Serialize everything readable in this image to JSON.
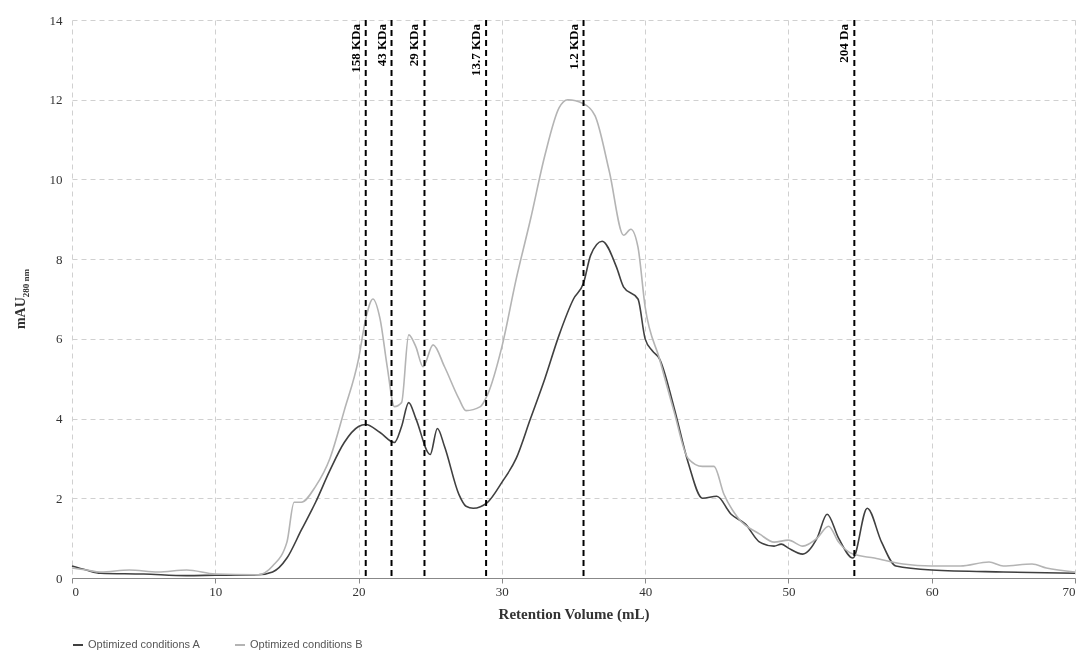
{
  "chart_data": {
    "type": "line",
    "xlabel": "Retention Volume (mL)",
    "ylabel": "mAU$_{280 nm}$",
    "xlim": [
      0,
      70
    ],
    "xticks": [
      0,
      10,
      20,
      30,
      40,
      50,
      60,
      70
    ],
    "ylim": [
      0,
      14
    ],
    "yticks": [
      0,
      2,
      4,
      6,
      8,
      10,
      12,
      14
    ],
    "grid": true,
    "legend": "bottom",
    "line_style": "solid",
    "marker": "none",
    "series": [
      {
        "name": "Optimized conditions A",
        "color": "#404040",
        "x": [
          0,
          1,
          2,
          5,
          8,
          10,
          13,
          14,
          15,
          16,
          17,
          18,
          19,
          20,
          20.5,
          21.5,
          22.5,
          23,
          23.5,
          24,
          25,
          25.5,
          26,
          27,
          27.5,
          28,
          29,
          30,
          31,
          32,
          33,
          34,
          35,
          35.7,
          36.2,
          37,
          38,
          38.5,
          39.5,
          40,
          40.5,
          41,
          42,
          43,
          44,
          45,
          46,
          47,
          48,
          49,
          49.5,
          50,
          51,
          52,
          52.7,
          53.5,
          54.5,
          55.5,
          56.5,
          57.5,
          60,
          65,
          70
        ],
        "values": [
          0.3,
          0.2,
          0.12,
          0.1,
          0.06,
          0.07,
          0.08,
          0.15,
          0.5,
          1.2,
          1.9,
          2.7,
          3.4,
          3.8,
          3.85,
          3.65,
          3.4,
          3.8,
          4.4,
          4.0,
          3.1,
          3.75,
          3.3,
          2.1,
          1.8,
          1.75,
          1.9,
          2.4,
          3.0,
          4.0,
          5.0,
          6.1,
          7.0,
          7.4,
          8.1,
          8.45,
          7.8,
          7.3,
          7.0,
          6.0,
          5.7,
          5.5,
          4.3,
          2.9,
          2.0,
          2.05,
          1.6,
          1.35,
          0.9,
          0.8,
          0.85,
          0.75,
          0.6,
          1.0,
          1.6,
          1.0,
          0.5,
          1.75,
          0.9,
          0.3,
          0.2,
          0.15,
          0.12
        ]
      },
      {
        "name": "Optimized conditions B",
        "color": "#b4b4b4",
        "x": [
          0,
          1,
          2,
          4,
          6,
          8,
          10,
          13,
          14,
          15,
          15.5,
          16,
          17,
          18,
          19,
          20,
          20.5,
          21,
          21.5,
          22,
          22.5,
          23,
          23.5,
          24,
          24.5,
          25.2,
          26,
          27,
          27.5,
          28.5,
          29,
          30,
          31,
          32,
          33,
          34,
          34.6,
          35.7,
          36.5,
          37.5,
          38.5,
          39,
          39.5,
          40,
          41,
          42,
          43,
          44,
          44.8,
          45.5,
          46.5,
          48,
          49,
          50,
          51,
          52,
          52.8,
          53.5,
          54.5,
          56,
          58,
          60,
          62,
          64,
          65,
          67,
          68,
          70
        ],
        "values": [
          0.25,
          0.2,
          0.15,
          0.2,
          0.15,
          0.2,
          0.1,
          0.08,
          0.3,
          0.9,
          1.9,
          1.9,
          2.3,
          3.0,
          4.2,
          5.5,
          6.5,
          7.0,
          6.5,
          5.3,
          4.3,
          4.4,
          6.1,
          5.8,
          5.3,
          5.85,
          5.3,
          4.5,
          4.2,
          4.3,
          4.6,
          5.8,
          7.5,
          9.0,
          10.6,
          11.8,
          12.0,
          11.9,
          11.6,
          10.2,
          8.6,
          8.75,
          8.3,
          6.8,
          5.5,
          4.2,
          3.0,
          2.8,
          2.8,
          2.1,
          1.5,
          1.1,
          0.9,
          0.95,
          0.8,
          1.0,
          1.3,
          0.9,
          0.6,
          0.5,
          0.35,
          0.3,
          0.3,
          0.4,
          0.3,
          0.35,
          0.25,
          0.15
        ]
      }
    ],
    "ref_lines": [
      {
        "axis": "x",
        "value": 20.5,
        "label": "158 KDa",
        "color": "#000000",
        "line_style": "dashed"
      },
      {
        "axis": "x",
        "value": 22.3,
        "label": "43 KDa",
        "color": "#000000",
        "line_style": "dashed"
      },
      {
        "axis": "x",
        "value": 24.6,
        "label": "29 KDa",
        "color": "#000000",
        "line_style": "dashed"
      },
      {
        "axis": "x",
        "value": 28.9,
        "label": "13.7 KDa",
        "color": "#000000",
        "line_style": "dashed"
      },
      {
        "axis": "x",
        "value": 35.7,
        "label": "1.2 KDa",
        "color": "#000000",
        "line_style": "dashed"
      },
      {
        "axis": "x",
        "value": 54.6,
        "label": "204 Da",
        "color": "#000000",
        "line_style": "dashed"
      }
    ]
  }
}
